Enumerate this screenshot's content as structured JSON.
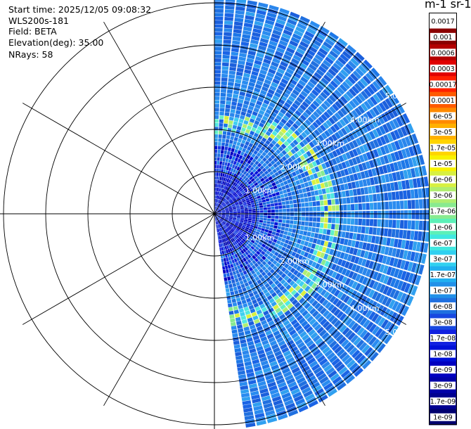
{
  "header": {
    "start_time": "Start time: 2025/12/05 09:08:32",
    "instrument": "WLS200s-181",
    "field": "Field: BETA",
    "elevation": "Elevation(deg): 35.00",
    "nrays": "NRays: 58"
  },
  "colorbar": {
    "title": "m-1 sr-1",
    "ticks": [
      "0.0017",
      "0.001",
      "0.0006",
      "0.0003",
      "0.00017",
      "0.0001",
      "6e-05",
      "3e-05",
      "1.7e-05",
      "1e-05",
      "6e-06",
      "3e-06",
      "1.7e-06",
      "1e-06",
      "6e-07",
      "3e-07",
      "1.7e-07",
      "1e-07",
      "6e-08",
      "3e-08",
      "1.7e-08",
      "1e-08",
      "6e-09",
      "3e-09",
      "1.7e-09",
      "1e-09"
    ],
    "colors": [
      "#ffffff",
      "#8b0000",
      "#b30000",
      "#e00000",
      "#ff2000",
      "#ff5a00",
      "#ff8a00",
      "#ffb000",
      "#ffd400",
      "#f8f200",
      "#d8f040",
      "#b0ee70",
      "#88ea90",
      "#5cf0b8",
      "#40e8e0",
      "#30d0f0",
      "#20b0f0",
      "#2090e8",
      "#2070e0",
      "#1848e0",
      "#1020e0",
      "#0010d8",
      "#0000c0",
      "#0000a8",
      "#000090",
      "#000070"
    ]
  },
  "chart_data": {
    "type": "ppi",
    "field": "BETA",
    "elevation_deg": 35.0,
    "n_rays": 58,
    "range_rings_km": [
      1.0,
      2.0,
      3.0,
      4.0,
      5.0
    ],
    "range_ring_labels": [
      "1.00km",
      "2.00km",
      "3.00km",
      "4.00km",
      "5.00km"
    ],
    "azimuth_spokes_deg": [
      0,
      30,
      60,
      90,
      120,
      150,
      180,
      210,
      240,
      270,
      300,
      330
    ],
    "azimuth_start_deg": 0,
    "azimuth_end_deg": 172,
    "max_range_km": 5.1,
    "background_level": "3e-08",
    "aerosol_layer": {
      "range_km": [
        1.9,
        3.0
      ],
      "description": "enhanced backscatter arc",
      "peak_level": "1.7e-06"
    },
    "colorbar_ticks": [
      "0.0017",
      "0.001",
      "0.0006",
      "0.0003",
      "0.00017",
      "0.0001",
      "6e-05",
      "3e-05",
      "1.7e-05",
      "1e-05",
      "6e-06",
      "3e-06",
      "1.7e-06",
      "1e-06",
      "6e-07",
      "3e-07",
      "1.7e-07",
      "1e-07",
      "6e-08",
      "3e-08",
      "1.7e-08",
      "1e-08",
      "6e-09",
      "3e-09",
      "1.7e-09",
      "1e-09"
    ]
  }
}
